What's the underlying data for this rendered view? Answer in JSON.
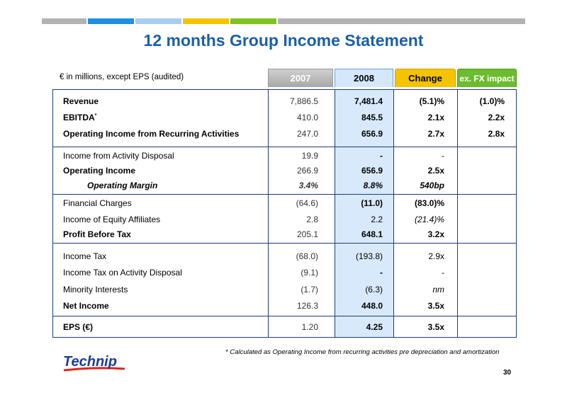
{
  "header": {
    "title": "12 months Group Income Statement",
    "subtitle": "€ in millions, except EPS  (audited)",
    "bar_colors": [
      "#b3b3b3",
      "#1e90e0",
      "#a8cdf0",
      "#f5c400",
      "#7fc31f",
      "#b3b3b3"
    ]
  },
  "columns": {
    "y2007": "2007",
    "y2008": "2008",
    "change": "Change",
    "fx": "ex. FX impact"
  },
  "rows": [
    {
      "label": "Revenue",
      "v2007": "7,886.5",
      "v2008": "7,481.4",
      "change": "(5.1)%",
      "fx": "(1.0)%"
    },
    {
      "label": "EBITDA",
      "sup": "*",
      "v2007": "410.0",
      "v2008": "845.5",
      "change": "2.1x",
      "fx": "2.2x"
    },
    {
      "label": "Operating Income from Recurring Activities",
      "v2007": "247.0",
      "v2008": "656.9",
      "change": "2.7x",
      "fx": "2.8x"
    },
    {
      "label": "Income from Activity Disposal",
      "v2007": "19.9",
      "v2008": "-",
      "change": "-",
      "fx": ""
    },
    {
      "label": "Operating Income",
      "v2007": "266.9",
      "v2008": "656.9",
      "change": "2.5x",
      "fx": ""
    },
    {
      "label": "Operating Margin",
      "v2007": "3.4%",
      "v2008": "8.8%",
      "change": "540bp",
      "fx": ""
    },
    {
      "label": "Financial Charges",
      "v2007": "(64.6)",
      "v2008": "(11.0)",
      "change": "(83.0)%",
      "fx": ""
    },
    {
      "label": "Income of Equity Affiliates",
      "v2007": "2.8",
      "v2008": "2.2",
      "change": "(21.4)%",
      "fx": ""
    },
    {
      "label": "Profit Before Tax",
      "v2007": "205.1",
      "v2008": "648.1",
      "change": "3.2x",
      "fx": ""
    },
    {
      "label": "Income Tax",
      "v2007": "(68.0)",
      "v2008": "(193.8)",
      "change": "2.9x",
      "fx": ""
    },
    {
      "label": "Income Tax on Activity Disposal",
      "v2007": "(9.1)",
      "v2008": "-",
      "change": "-",
      "fx": ""
    },
    {
      "label": "Minority Interests",
      "v2007": "(1.7)",
      "v2008": "(6.3)",
      "change": "nm",
      "fx": ""
    },
    {
      "label": "Net Income",
      "v2007": "126.3",
      "v2008": "448.0",
      "change": "3.5x",
      "fx": ""
    },
    {
      "label": "EPS (€)",
      "v2007": "1.20",
      "v2008": "4.25",
      "change": "3.5x",
      "fx": ""
    }
  ],
  "footnote": "* Calculated as Operating Income from recurring activities pre depreciation and amortization",
  "logo_text": "Technip",
  "page_number": "30"
}
